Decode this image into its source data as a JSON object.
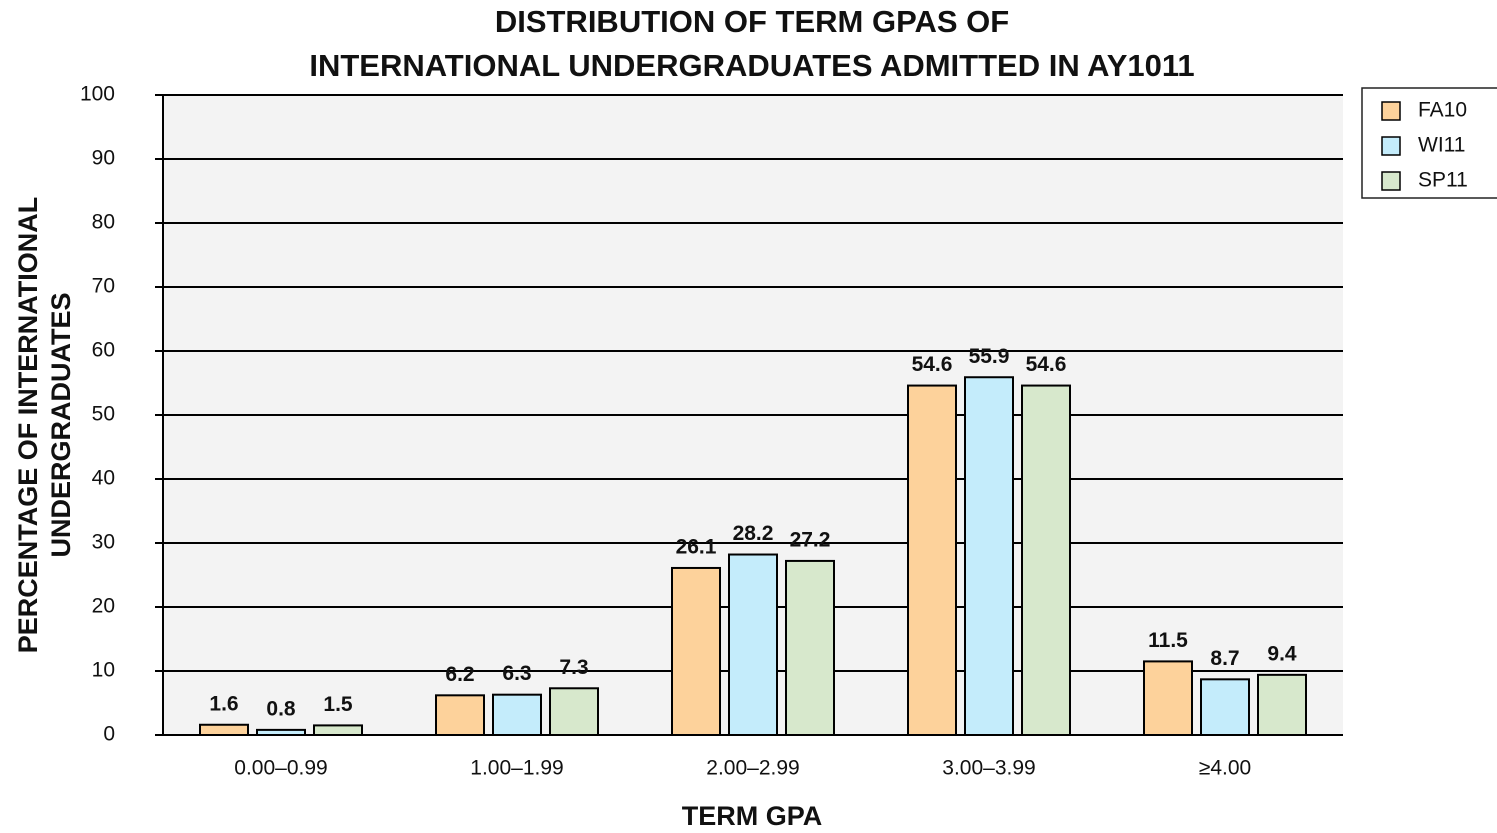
{
  "chart_data": {
    "type": "bar",
    "title": [
      "DISTRIBUTION OF TERM GPAS OF",
      "INTERNATIONAL UNDERGRADUATES ADMITTED IN AY1011"
    ],
    "x_label": "TERM GPA",
    "y_label": [
      "PERCENTAGE OF INTERNATIONAL",
      "UNDERGRADUATES"
    ],
    "categories": [
      "0.00–0.99",
      "1.00–1.99",
      "2.00–2.99",
      "3.00–3.99",
      "≥4.00"
    ],
    "series": [
      {
        "name": "FA10",
        "color": "#fdd29b",
        "values": [
          1.6,
          6.2,
          26.1,
          54.6,
          11.5
        ]
      },
      {
        "name": "WI11",
        "color": "#c4ecfb",
        "values": [
          0.8,
          6.3,
          28.2,
          55.9,
          8.7
        ]
      },
      {
        "name": "SP11",
        "color": "#d7e8cc",
        "values": [
          1.5,
          7.3,
          27.2,
          54.6,
          9.4
        ]
      }
    ],
    "ylim": [
      0,
      100
    ],
    "yticks": [
      0,
      10,
      20,
      30,
      40,
      50,
      60,
      70,
      80,
      90,
      100
    ],
    "grid": true,
    "legend": "top-right"
  }
}
